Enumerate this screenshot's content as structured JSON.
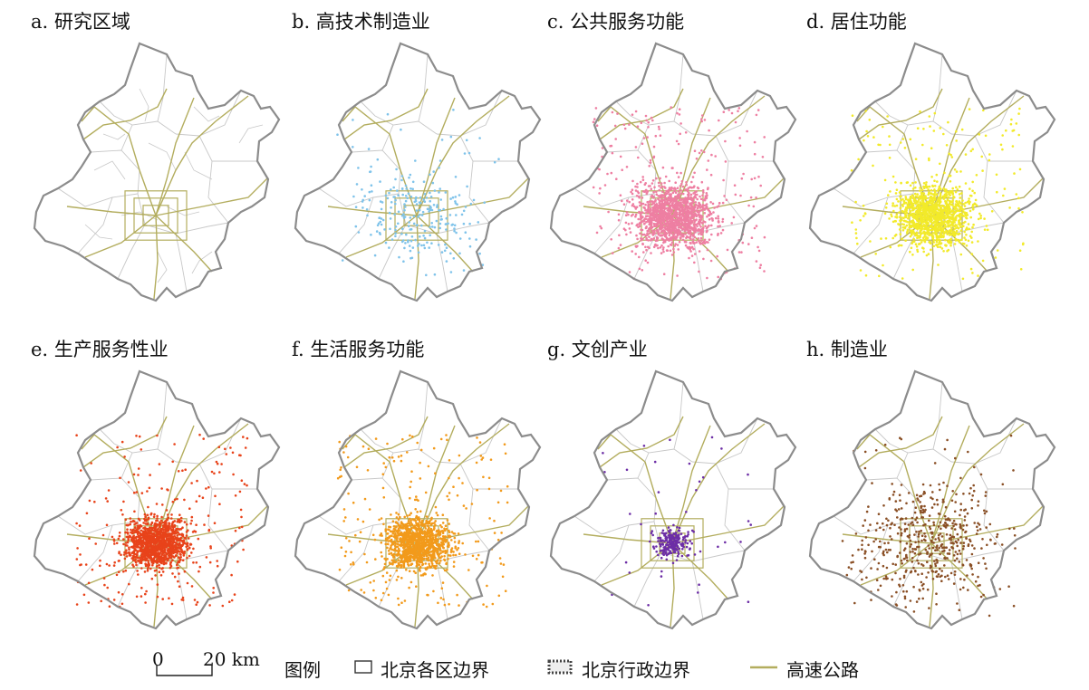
{
  "panels": [
    {
      "label": "a. 研究区域",
      "layer": "study-area",
      "color": "#9a9a9a"
    },
    {
      "label": "b. 高技术制造业",
      "layer": "high-tech-manufacturing",
      "color": "#7fc3ea"
    },
    {
      "label": "c. 公共服务功能",
      "layer": "public-service",
      "color": "#ee7fa2"
    },
    {
      "label": "d. 居住功能",
      "layer": "residential",
      "color": "#f2ea2a"
    },
    {
      "label": "e. 生产服务性业",
      "layer": "producer-services",
      "color": "#e8431a"
    },
    {
      "label": "f. 生活服务功能",
      "layer": "life-services",
      "color": "#f29a1b"
    },
    {
      "label": "g. 文创产业",
      "layer": "cultural-creative",
      "color": "#6d2ea6"
    },
    {
      "label": "h. 制造业",
      "layer": "manufacturing",
      "color": "#8a4f25"
    }
  ],
  "legend": {
    "scale_zero": "0",
    "scale_end": "20 km",
    "title": "图例",
    "district_boundary": "北京各区边界",
    "city_boundary": "北京行政边界",
    "expressway": "高速公路"
  },
  "colors": {
    "city_boundary": "#8c8c8c",
    "district_boundary": "#c8c8c8",
    "expressway": "#b3ad5e"
  }
}
